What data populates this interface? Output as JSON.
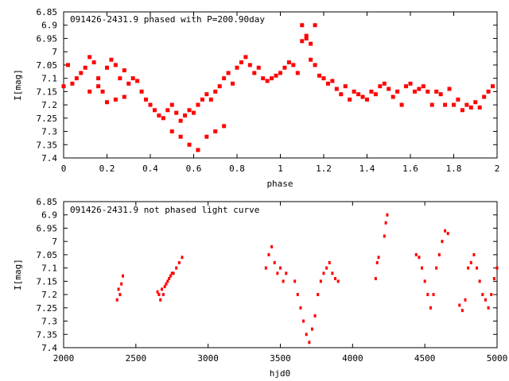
{
  "chart_data": [
    {
      "type": "scatter",
      "title": "091426-2431.9 phased with P=200.90day",
      "xlabel": "phase",
      "ylabel": "I[mag]",
      "xlim": [
        0,
        2
      ],
      "ylim": [
        7.4,
        6.85
      ],
      "y_reversed": true,
      "grid": false,
      "legend": "none",
      "marker": "asterisk",
      "x_ticks": [
        "0",
        "0.2",
        "0.4",
        "0.6",
        "0.8",
        "1",
        "1.2",
        "1.4",
        "1.6",
        "1.8",
        "2"
      ],
      "y_ticks": [
        "6.85",
        "6.9",
        "6.95",
        "7",
        "7.05",
        "7.1",
        "7.15",
        "7.2",
        "7.25",
        "7.3",
        "7.35",
        "7.4"
      ],
      "colors": {
        "points": "#ff0000"
      },
      "series": [
        {
          "x": [
            0.0,
            0.02,
            0.04,
            0.06,
            0.08,
            0.1,
            0.12,
            0.14,
            0.16,
            0.18,
            0.2,
            0.22,
            0.24,
            0.26,
            0.28,
            0.3,
            0.32,
            0.34,
            0.36,
            0.38,
            0.4,
            0.42,
            0.44,
            0.46,
            0.48,
            0.5,
            0.52,
            0.54,
            0.56,
            0.58,
            0.6,
            0.62,
            0.64,
            0.66,
            0.68,
            0.7,
            0.72,
            0.74,
            0.76,
            0.78,
            0.8,
            0.82,
            0.84,
            0.86,
            0.88,
            0.9,
            0.92,
            0.94,
            0.96,
            0.98,
            1.0,
            1.02,
            1.04,
            1.06,
            1.08,
            1.1,
            1.12,
            1.14,
            1.16,
            1.18,
            1.2,
            1.22,
            1.24,
            1.26,
            1.28,
            1.3,
            1.32,
            1.34,
            1.36,
            1.38,
            1.4,
            1.42,
            1.44,
            1.46,
            1.48,
            1.5,
            1.52,
            1.54,
            1.56,
            1.58,
            1.6,
            1.62,
            1.64,
            1.66,
            1.68,
            1.7,
            1.72,
            1.74,
            1.76,
            1.78,
            1.8,
            1.82,
            1.84,
            1.86,
            1.88,
            1.9,
            1.92,
            1.94,
            1.96,
            1.98,
            0.12,
            0.16,
            0.2,
            0.24,
            0.28,
            0.5,
            0.54,
            0.58,
            0.62,
            0.66,
            0.7,
            0.74,
            1.1,
            1.12,
            1.14,
            1.16
          ],
          "y": [
            7.13,
            7.05,
            7.12,
            7.1,
            7.08,
            7.06,
            7.02,
            7.04,
            7.1,
            7.15,
            7.06,
            7.03,
            7.05,
            7.1,
            7.07,
            7.12,
            7.1,
            7.11,
            7.15,
            7.18,
            7.2,
            7.22,
            7.24,
            7.25,
            7.22,
            7.2,
            7.23,
            7.26,
            7.24,
            7.22,
            7.23,
            7.2,
            7.18,
            7.16,
            7.18,
            7.15,
            7.13,
            7.1,
            7.08,
            7.12,
            7.06,
            7.04,
            7.02,
            7.05,
            7.08,
            7.06,
            7.1,
            7.11,
            7.1,
            7.09,
            7.08,
            7.06,
            7.04,
            7.05,
            7.08,
            6.9,
            6.95,
            7.03,
            7.05,
            7.09,
            7.1,
            7.12,
            7.11,
            7.14,
            7.16,
            7.13,
            7.18,
            7.15,
            7.16,
            7.17,
            7.18,
            7.15,
            7.16,
            7.13,
            7.12,
            7.14,
            7.17,
            7.15,
            7.2,
            7.13,
            7.12,
            7.15,
            7.14,
            7.13,
            7.15,
            7.2,
            7.15,
            7.16,
            7.2,
            7.14,
            7.2,
            7.18,
            7.22,
            7.2,
            7.21,
            7.19,
            7.21,
            7.17,
            7.15,
            7.13,
            7.15,
            7.13,
            7.19,
            7.18,
            7.17,
            7.3,
            7.32,
            7.35,
            7.37,
            7.32,
            7.3,
            7.28,
            6.96,
            6.94,
            6.97,
            6.9
          ]
        }
      ]
    },
    {
      "type": "scatter",
      "title": "091426-2431.9 not phased light curve",
      "xlabel": "hjd0",
      "ylabel": "I[mag]",
      "xlim": [
        2000,
        5000
      ],
      "ylim": [
        7.4,
        6.85
      ],
      "y_reversed": true,
      "grid": false,
      "legend": "none",
      "marker": "dot",
      "x_ticks": [
        "2000",
        "2500",
        "3000",
        "3500",
        "4000",
        "4500",
        "5000"
      ],
      "y_ticks": [
        "6.85",
        "6.9",
        "6.95",
        "7",
        "7.05",
        "7.1",
        "7.15",
        "7.2",
        "7.25",
        "7.3",
        "7.35",
        "7.4"
      ],
      "colors": {
        "points": "#ff0000"
      },
      "series": [
        {
          "x": [
            2370,
            2380,
            2390,
            2400,
            2410,
            2650,
            2660,
            2670,
            2680,
            2690,
            2700,
            2710,
            2720,
            2730,
            2740,
            2750,
            2760,
            2780,
            2800,
            2820,
            3400,
            3420,
            3440,
            3460,
            3480,
            3500,
            3520,
            3540,
            3600,
            3620,
            3640,
            3660,
            3680,
            3700,
            3720,
            3740,
            3760,
            3780,
            3800,
            3820,
            3840,
            3860,
            3880,
            3900,
            4160,
            4170,
            4180,
            4220,
            4230,
            4240,
            4440,
            4460,
            4480,
            4500,
            4520,
            4540,
            4560,
            4580,
            4600,
            4620,
            4640,
            4660,
            4740,
            4760,
            4780,
            4800,
            4820,
            4840,
            4860,
            4880,
            4900,
            4920,
            4940,
            4960,
            4980,
            5000
          ],
          "y": [
            7.22,
            7.18,
            7.2,
            7.16,
            7.13,
            7.19,
            7.2,
            7.22,
            7.18,
            7.2,
            7.17,
            7.16,
            7.15,
            7.14,
            7.13,
            7.12,
            7.12,
            7.1,
            7.08,
            7.06,
            7.1,
            7.05,
            7.02,
            7.08,
            7.12,
            7.1,
            7.15,
            7.12,
            7.15,
            7.2,
            7.25,
            7.3,
            7.35,
            7.38,
            7.33,
            7.28,
            7.2,
            7.15,
            7.12,
            7.1,
            7.08,
            7.12,
            7.14,
            7.15,
            7.14,
            7.08,
            7.06,
            6.98,
            6.93,
            6.9,
            7.05,
            7.06,
            7.1,
            7.15,
            7.2,
            7.25,
            7.2,
            7.1,
            7.05,
            7.0,
            6.96,
            6.97,
            7.24,
            7.26,
            7.22,
            7.1,
            7.08,
            7.05,
            7.1,
            7.15,
            7.2,
            7.22,
            7.25,
            7.2,
            7.14,
            7.1
          ]
        }
      ]
    }
  ]
}
